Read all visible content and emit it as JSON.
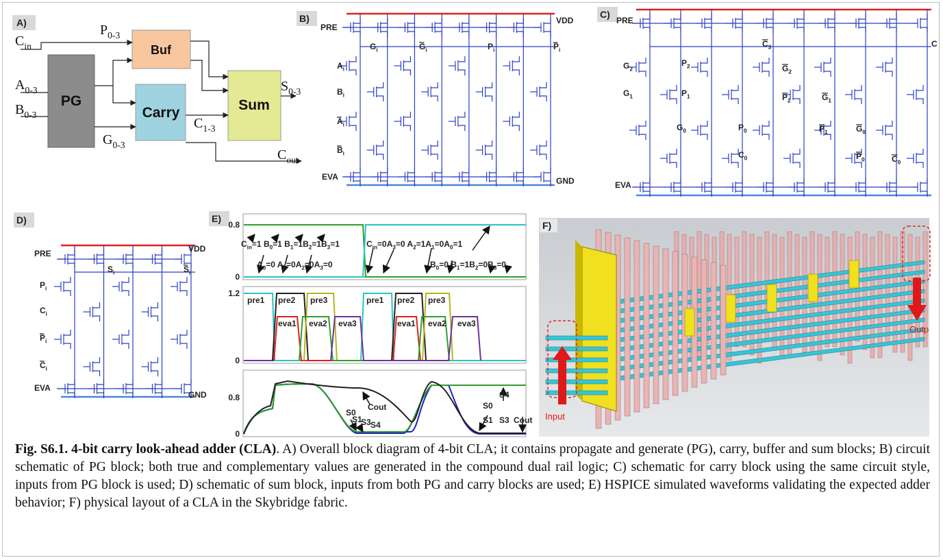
{
  "figure": {
    "panels": {
      "a": {
        "label": "A)",
        "blocks": {
          "pg": "PG",
          "buf": "Buf",
          "carry": "Carry",
          "sum": "Sum"
        },
        "signals": {
          "cin": [
            "C",
            "in"
          ],
          "a": [
            "A",
            "0-3"
          ],
          "b": [
            "B",
            "0-3"
          ],
          "p": [
            "P",
            "0-3"
          ],
          "g": [
            "G",
            "0-3"
          ],
          "c": [
            "C",
            "1-3"
          ],
          "s": [
            "S",
            "0-3"
          ],
          "cout": [
            "C",
            "out"
          ]
        }
      },
      "b": {
        "label": "B)",
        "signals": [
          [
            "PRE"
          ],
          [
            "VDD"
          ],
          [
            "G",
            "i"
          ],
          [
            "G",
            "i"
          ],
          [
            "P",
            "i"
          ],
          [
            "P",
            "i"
          ],
          [
            "A",
            "i"
          ],
          [
            "B",
            "i"
          ],
          [
            "A",
            "i"
          ],
          [
            "B",
            "i"
          ],
          [
            "EVA"
          ],
          [
            "GND"
          ]
        ]
      },
      "c": {
        "label": "C)",
        "signals": [
          [
            "PRE"
          ],
          [
            "C",
            "3"
          ],
          [
            "C"
          ],
          [
            "G",
            "2"
          ],
          [
            "P",
            "2"
          ],
          [
            "G",
            "1"
          ],
          [
            "P",
            "1"
          ],
          [
            "G",
            "0"
          ],
          [
            "P",
            "0"
          ],
          [
            "C",
            "0"
          ],
          [
            "G",
            "2"
          ],
          [
            "P",
            "2"
          ],
          [
            "G",
            "1"
          ],
          [
            "P",
            "1"
          ],
          [
            "G",
            "0"
          ],
          [
            "P",
            "0"
          ],
          [
            "C",
            "0"
          ],
          [
            "EVA"
          ]
        ]
      },
      "d": {
        "label": "D)",
        "signals": [
          [
            "PRE"
          ],
          [
            "VDD"
          ],
          [
            "S",
            "i"
          ],
          [
            "S",
            "i"
          ],
          [
            "P",
            "i"
          ],
          [
            "C",
            "i"
          ],
          [
            "P",
            "i"
          ],
          [
            "C",
            "i"
          ],
          [
            "EVA"
          ],
          [
            "GND"
          ]
        ]
      },
      "e": {
        "label": "E)",
        "plots": [
          {
            "yticks": [
              "0.8",
              "0"
            ],
            "annotations": [
              [
                "C",
                "in",
                "=1 B",
                "0",
                "=1 B",
                "1",
                "=1B",
                "2",
                "=1B",
                "3",
                "=1"
              ],
              [
                "A",
                "0",
                "=0 A",
                "1",
                "=0A",
                "2",
                "=0A",
                "3",
                "=0"
              ],
              [
                "C",
                "in",
                "=0A",
                "3",
                "=0 A",
                "2",
                "=1A",
                "1",
                "=0A",
                "0",
                "=1"
              ],
              [
                "B",
                "0",
                "=0 B",
                "1",
                "=1B",
                "2",
                "=0B",
                "3",
                "=0"
              ]
            ]
          },
          {
            "yticks": [
              "1.2",
              "0"
            ],
            "annotations": [
              [
                "pre1"
              ],
              [
                "pre2"
              ],
              [
                "pre3"
              ],
              [
                "eva1"
              ],
              [
                "eva2"
              ],
              [
                "eva3"
              ],
              [
                "pre1"
              ],
              [
                "pre2"
              ],
              [
                "pre3"
              ],
              [
                "eva1"
              ],
              [
                "eva2"
              ],
              [
                "eva3"
              ]
            ]
          },
          {
            "yticks": [
              "0.8",
              "0"
            ],
            "annotations": [
              [
                "Cout"
              ],
              [
                "S0"
              ],
              [
                "S1"
              ],
              [
                "S3"
              ],
              [
                "S4"
              ],
              [
                "S0"
              ],
              [
                "S4"
              ],
              [
                "S1"
              ],
              [
                "S3"
              ],
              [
                "Cout"
              ]
            ]
          }
        ]
      },
      "f": {
        "label": "F)",
        "input": "Input",
        "output": "Outp"
      }
    },
    "caption": {
      "title": "Fig. S6.1. 4-bit carry look-ahead adder (CLA)",
      "text": ". A) Overall block diagram of 4-bit CLA; it contains propagate and generate (PG), carry, buffer and sum blocks; B) circuit schematic of PG block; both true and complementary values are generated in the compound dual rail logic; C) schematic for carry block using the same circuit style, inputs from PG block is used; D) schematic of sum block, inputs from both PG and carry blocks are used; E) HSPICE simulated waveforms validating the expected adder behavior; F) physical layout of a CLA in the Skybridge fabric."
    }
  }
}
